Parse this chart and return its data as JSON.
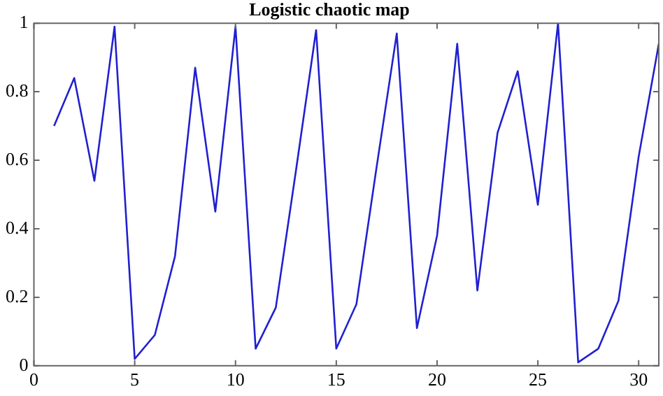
{
  "chart_data": {
    "type": "line",
    "title": "Logistic chaotic map",
    "x": [
      1,
      2,
      3,
      4,
      5,
      6,
      7,
      8,
      9,
      10,
      11,
      12,
      13,
      14,
      15,
      16,
      17,
      18,
      19,
      20,
      21,
      22,
      23,
      24,
      25,
      26,
      27,
      28,
      29,
      30,
      31
    ],
    "series": [
      {
        "color": "#2020d0",
        "values": [
          0.7,
          0.84,
          0.54,
          0.99,
          0.02,
          0.09,
          0.32,
          0.87,
          0.45,
          0.99,
          0.05,
          0.17,
          0.57,
          0.98,
          0.05,
          0.18,
          0.58,
          0.97,
          0.11,
          0.38,
          0.94,
          0.22,
          0.68,
          0.86,
          0.47,
          1.0,
          0.01,
          0.05,
          0.19,
          0.61,
          0.94
        ]
      }
    ],
    "xlim": [
      0,
      31
    ],
    "xticks": [
      0,
      5,
      10,
      15,
      20,
      25,
      30
    ],
    "ylim": [
      0,
      1
    ],
    "yticks": [
      0,
      0.2,
      0.4,
      0.6,
      0.8,
      1
    ],
    "grid": false,
    "legend": false,
    "marker": "none",
    "line_style": "solid"
  }
}
